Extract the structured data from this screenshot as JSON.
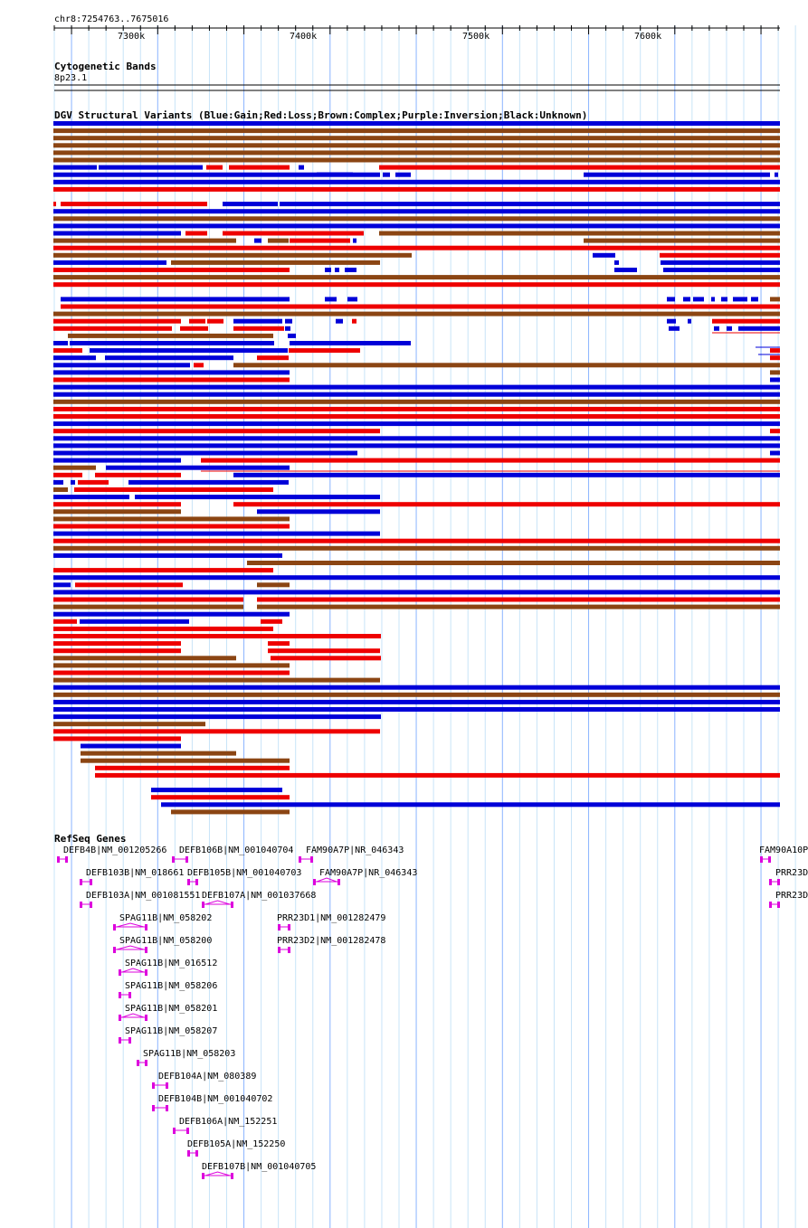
{
  "locus": "chr8:7254763..7675016",
  "ruler": {
    "ticks": [
      "7300k",
      "7400k",
      "7500k",
      "7600k"
    ]
  },
  "cyto": {
    "title": "Cytogenetic Bands",
    "band": "8p23.1"
  },
  "dgv": {
    "title": "DGV Structural Variants (Blue:Gain;Red:Loss;Brown:Complex;Purple:Inversion;Black:Unknown)",
    "colors": {
      "gain": "#0000d8",
      "loss": "#ee0000",
      "complex": "#8b4513"
    }
  },
  "refseq": {
    "title": "RefSeq Genes",
    "color": "#dd00dd",
    "genes": [
      "DEFB4B|NM_001205266",
      "DEFB106B|NM_001040704",
      "FAM90A7P|NR_046343",
      "FAM90A10P",
      "DEFB103B|NM_018661",
      "DEFB105B|NM_001040703",
      "FAM90A7P|NR_046343",
      "PRR23D",
      "DEFB103A|NM_001081551",
      "DEFB107A|NM_001037668",
      "PRR23D",
      "SPAG11B|NM_058202",
      "PRR23D1|NM_001282479",
      "SPAG11B|NM_058200",
      "PRR23D2|NM_001282478",
      "SPAG11B|NM_016512",
      "SPAG11B|NM_058206",
      "SPAG11B|NM_058201",
      "SPAG11B|NM_058207",
      "SPAG11B|NM_058203",
      "DEFB104A|NM_080389",
      "DEFB104B|NM_001040702",
      "DEFB106A|NM_152251",
      "DEFB105A|NM_152250",
      "DEFB107B|NM_001040705"
    ]
  }
}
